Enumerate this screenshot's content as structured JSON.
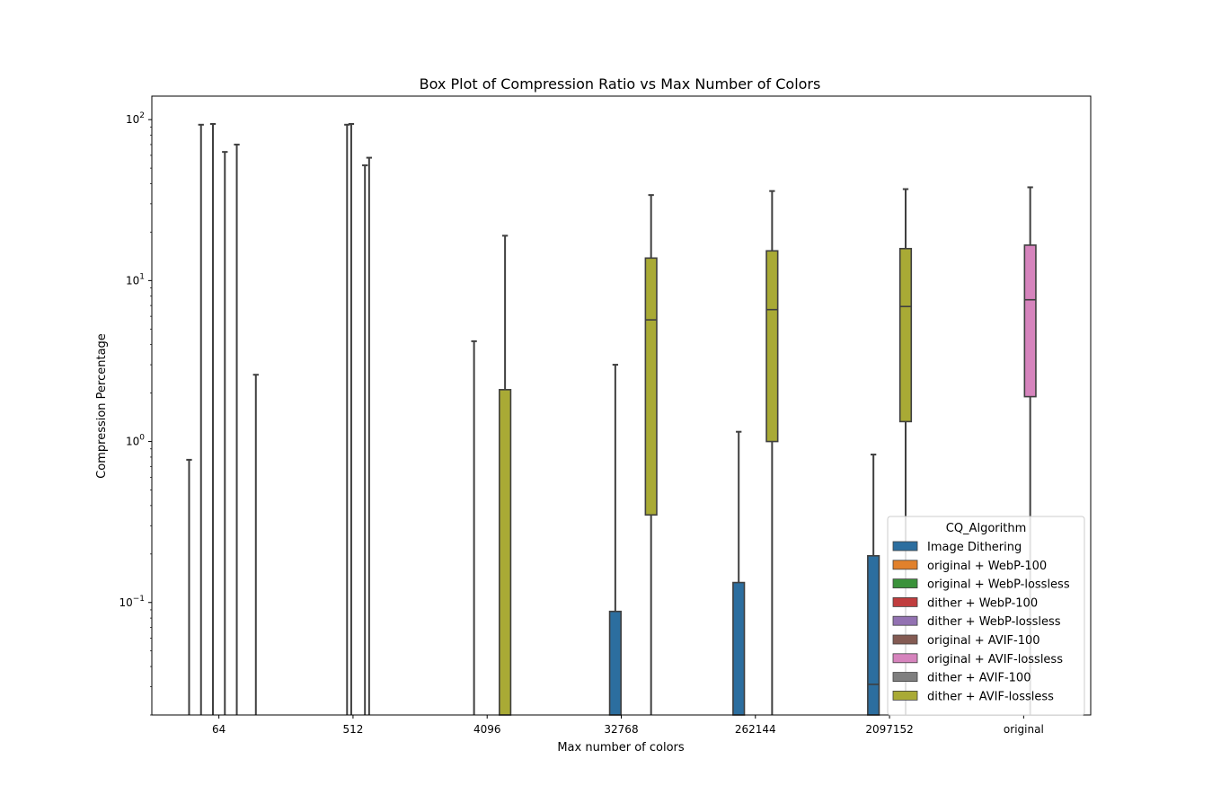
{
  "chart_data": {
    "type": "box",
    "title": "Box Plot of Compression Ratio vs Max Number of Colors",
    "xlabel": "Max number of colors",
    "ylabel": "Compression Percentage",
    "yscale": "log",
    "ylim": [
      0.02,
      140
    ],
    "y_ticks": [
      {
        "value": 0.1,
        "base": "10",
        "exp": "−1"
      },
      {
        "value": 1,
        "base": "10",
        "exp": "0"
      },
      {
        "value": 10,
        "base": "10",
        "exp": "1"
      },
      {
        "value": 100,
        "base": "10",
        "exp": "2"
      }
    ],
    "categories": [
      "64",
      "512",
      "4096",
      "32768",
      "262144",
      "2097152",
      "original"
    ],
    "legend": {
      "title": "CQ_Algorithm",
      "position": "lower-right",
      "entries": [
        {
          "name": "Image Dithering",
          "color": "#2c6e9f"
        },
        {
          "name": "original + WebP-100",
          "color": "#e1812c"
        },
        {
          "name": "original + WebP-lossless",
          "color": "#3a923a"
        },
        {
          "name": "dither + WebP-100",
          "color": "#c03d3e"
        },
        {
          "name": "dither + WebP-lossless",
          "color": "#9372b2"
        },
        {
          "name": "original + AVIF-100",
          "color": "#845b53"
        },
        {
          "name": "original + AVIF-lossless",
          "color": "#d684bd"
        },
        {
          "name": "dither + AVIF-100",
          "color": "#7f7f7f"
        },
        {
          "name": "dither + AVIF-lossless",
          "color": "#a9aa35"
        }
      ]
    },
    "boxes": [
      {
        "category": "64",
        "slot": -2.5,
        "series": "Image Dithering",
        "whisker_high": 0.77,
        "q3": 0.02,
        "median": 0.02,
        "q1": 0.02,
        "whisker_low": 0.02
      },
      {
        "category": "64",
        "slot": -1.5,
        "series": "original + WebP-100",
        "whisker_high": 93,
        "q3": 0.02,
        "median": 0.02,
        "q1": 0.02,
        "whisker_low": 0.02
      },
      {
        "category": "64",
        "slot": -0.5,
        "series": "original + WebP-lossless",
        "whisker_high": 94,
        "q3": 0.02,
        "median": 0.02,
        "q1": 0.02,
        "whisker_low": 0.02
      },
      {
        "category": "64",
        "slot": 0.5,
        "series": "dither + WebP-100",
        "whisker_high": 63,
        "q3": 0.02,
        "median": 0.02,
        "q1": 0.02,
        "whisker_low": 0.02
      },
      {
        "category": "64",
        "slot": 1.5,
        "series": "dither + WebP-lossless",
        "whisker_high": 70,
        "q3": 0.02,
        "median": 0.02,
        "q1": 0.02,
        "whisker_low": 0.02
      },
      {
        "category": "64",
        "slot": 3.1,
        "series": "Image Dithering",
        "whisker_high": 2.6,
        "q3": 0.02,
        "median": 0.02,
        "q1": 0.02,
        "whisker_low": 0.02
      },
      {
        "category": "512",
        "slot": -0.5,
        "series": "original + WebP-100",
        "whisker_high": 93,
        "q3": 0.02,
        "median": 0.02,
        "q1": 0.02,
        "whisker_low": 0.02
      },
      {
        "category": "512",
        "slot": -0.15,
        "series": "original + WebP-lossless",
        "whisker_high": 94,
        "q3": 0.02,
        "median": 0.02,
        "q1": 0.02,
        "whisker_low": 0.02
      },
      {
        "category": "512",
        "slot": 1.0,
        "series": "dither + WebP-100",
        "whisker_high": 52,
        "q3": 0.02,
        "median": 0.02,
        "q1": 0.02,
        "whisker_low": 0.02
      },
      {
        "category": "512",
        "slot": 1.35,
        "series": "dither + WebP-lossless",
        "whisker_high": 58,
        "q3": 0.02,
        "median": 0.02,
        "q1": 0.02,
        "whisker_low": 0.02
      },
      {
        "category": "4096",
        "slot": -1.1,
        "series": "Image Dithering",
        "whisker_high": 4.2,
        "q3": 0.02,
        "median": 0.02,
        "q1": 0.02,
        "whisker_low": 0.02
      },
      {
        "category": "4096",
        "slot": 1.5,
        "series": "dither + AVIF-lossless",
        "whisker_high": 19,
        "q3": 2.1,
        "median": 0.02,
        "q1": 0.02,
        "whisker_low": 0.02
      },
      {
        "category": "32768",
        "slot": -0.5,
        "series": "Image Dithering",
        "whisker_high": 3.0,
        "q3": 0.088,
        "median": 0.02,
        "q1": 0.02,
        "whisker_low": 0.02
      },
      {
        "category": "32768",
        "slot": 2.5,
        "series": "dither + AVIF-lossless",
        "whisker_high": 34,
        "q3": 13.8,
        "median": 5.7,
        "q1": 0.35,
        "whisker_low": 0.02
      },
      {
        "category": "262144",
        "slot": -1.4,
        "series": "Image Dithering",
        "whisker_high": 1.15,
        "q3": 0.133,
        "median": 0.02,
        "q1": 0.02,
        "whisker_low": 0.02
      },
      {
        "category": "262144",
        "slot": 1.4,
        "series": "dither + AVIF-lossless",
        "whisker_high": 36,
        "q3": 15.3,
        "median": 6.6,
        "q1": 1.0,
        "whisker_low": 0.02
      },
      {
        "category": "2097152",
        "slot": -1.35,
        "series": "Image Dithering",
        "whisker_high": 0.83,
        "q3": 0.195,
        "median": 0.031,
        "q1": 0.02,
        "whisker_low": 0.02
      },
      {
        "category": "2097152",
        "slot": 1.35,
        "series": "dither + AVIF-lossless",
        "whisker_high": 37,
        "q3": 15.8,
        "median": 6.9,
        "q1": 1.33,
        "whisker_low": 0.02
      },
      {
        "category": "original",
        "slot": 0.55,
        "series": "original + AVIF-lossless",
        "whisker_high": 38,
        "q3": 16.6,
        "median": 7.6,
        "q1": 1.9,
        "whisker_low": 0.02
      }
    ]
  }
}
